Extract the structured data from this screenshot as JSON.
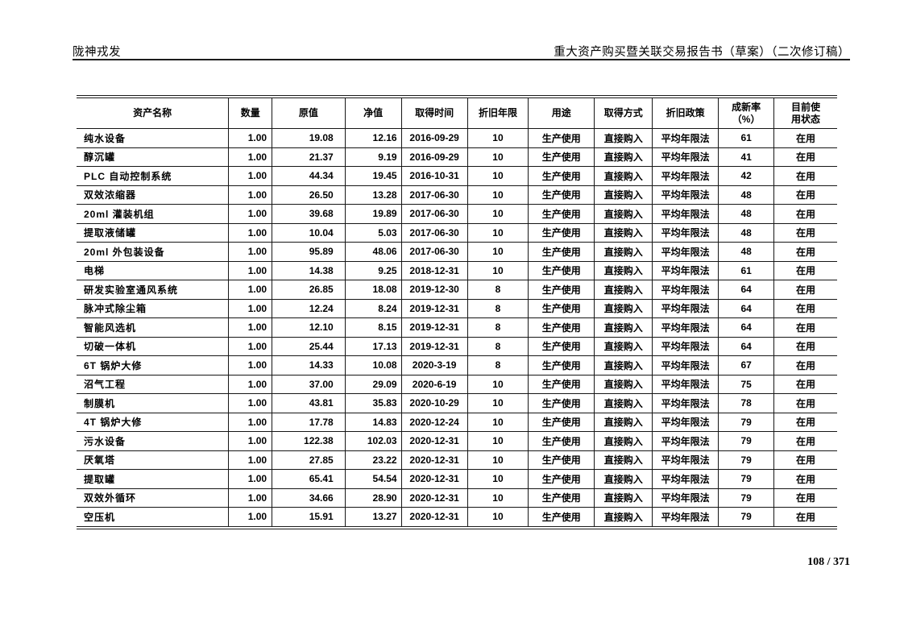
{
  "page": {
    "header_left": "陇神戎发",
    "header_right": "重大资产购买暨关联交易报告书（草案）（二次修订稿）",
    "page_number": "108 / 371"
  },
  "table": {
    "columns": [
      "资产名称",
      "数量",
      "原值",
      "净值",
      "取得时间",
      "折旧年限",
      "用途",
      "取得方式",
      "折旧政策",
      "成新率\n（%）",
      "目前使\n用状态"
    ],
    "col_widths_percent": [
      20.0,
      5.7,
      9.6,
      7.4,
      8.7,
      8.0,
      8.7,
      7.6,
      8.7,
      7.3,
      8.3
    ],
    "rows": [
      [
        "纯水设备",
        "1.00",
        "19.08",
        "12.16",
        "2016-09-29",
        "10",
        "生产使用",
        "直接购入",
        "平均年限法",
        "61",
        "在用"
      ],
      [
        "醇沉罐",
        "1.00",
        "21.37",
        "9.19",
        "2016-09-29",
        "10",
        "生产使用",
        "直接购入",
        "平均年限法",
        "41",
        "在用"
      ],
      [
        "PLC 自动控制系统",
        "1.00",
        "44.34",
        "19.45",
        "2016-10-31",
        "10",
        "生产使用",
        "直接购入",
        "平均年限法",
        "42",
        "在用"
      ],
      [
        "双效浓缩器",
        "1.00",
        "26.50",
        "13.28",
        "2017-06-30",
        "10",
        "生产使用",
        "直接购入",
        "平均年限法",
        "48",
        "在用"
      ],
      [
        "20ml 灌装机组",
        "1.00",
        "39.68",
        "19.89",
        "2017-06-30",
        "10",
        "生产使用",
        "直接购入",
        "平均年限法",
        "48",
        "在用"
      ],
      [
        "提取液储罐",
        "1.00",
        "10.04",
        "5.03",
        "2017-06-30",
        "10",
        "生产使用",
        "直接购入",
        "平均年限法",
        "48",
        "在用"
      ],
      [
        "20ml 外包装设备",
        "1.00",
        "95.89",
        "48.06",
        "2017-06-30",
        "10",
        "生产使用",
        "直接购入",
        "平均年限法",
        "48",
        "在用"
      ],
      [
        "电梯",
        "1.00",
        "14.38",
        "9.25",
        "2018-12-31",
        "10",
        "生产使用",
        "直接购入",
        "平均年限法",
        "61",
        "在用"
      ],
      [
        "研发实验室通风系统",
        "1.00",
        "26.85",
        "18.08",
        "2019-12-30",
        "8",
        "生产使用",
        "直接购入",
        "平均年限法",
        "64",
        "在用"
      ],
      [
        "脉冲式除尘箱",
        "1.00",
        "12.24",
        "8.24",
        "2019-12-31",
        "8",
        "生产使用",
        "直接购入",
        "平均年限法",
        "64",
        "在用"
      ],
      [
        "智能风选机",
        "1.00",
        "12.10",
        "8.15",
        "2019-12-31",
        "8",
        "生产使用",
        "直接购入",
        "平均年限法",
        "64",
        "在用"
      ],
      [
        "切破一体机",
        "1.00",
        "25.44",
        "17.13",
        "2019-12-31",
        "8",
        "生产使用",
        "直接购入",
        "平均年限法",
        "64",
        "在用"
      ],
      [
        "6T 锅炉大修",
        "1.00",
        "14.33",
        "10.08",
        "2020-3-19",
        "8",
        "生产使用",
        "直接购入",
        "平均年限法",
        "67",
        "在用"
      ],
      [
        "沼气工程",
        "1.00",
        "37.00",
        "29.09",
        "2020-6-19",
        "10",
        "生产使用",
        "直接购入",
        "平均年限法",
        "75",
        "在用"
      ],
      [
        "制膜机",
        "1.00",
        "43.81",
        "35.83",
        "2020-10-29",
        "10",
        "生产使用",
        "直接购入",
        "平均年限法",
        "78",
        "在用"
      ],
      [
        "4T 锅炉大修",
        "1.00",
        "17.78",
        "14.83",
        "2020-12-24",
        "10",
        "生产使用",
        "直接购入",
        "平均年限法",
        "79",
        "在用"
      ],
      [
        "污水设备",
        "1.00",
        "122.38",
        "102.03",
        "2020-12-31",
        "10",
        "生产使用",
        "直接购入",
        "平均年限法",
        "79",
        "在用"
      ],
      [
        "厌氧塔",
        "1.00",
        "27.85",
        "23.22",
        "2020-12-31",
        "10",
        "生产使用",
        "直接购入",
        "平均年限法",
        "79",
        "在用"
      ],
      [
        "提取罐",
        "1.00",
        "65.41",
        "54.54",
        "2020-12-31",
        "10",
        "生产使用",
        "直接购入",
        "平均年限法",
        "79",
        "在用"
      ],
      [
        "双效外循环",
        "1.00",
        "34.66",
        "28.90",
        "2020-12-31",
        "10",
        "生产使用",
        "直接购入",
        "平均年限法",
        "79",
        "在用"
      ],
      [
        "空压机",
        "1.00",
        "15.91",
        "13.27",
        "2020-12-31",
        "10",
        "生产使用",
        "直接购入",
        "平均年限法",
        "79",
        "在用"
      ]
    ]
  }
}
